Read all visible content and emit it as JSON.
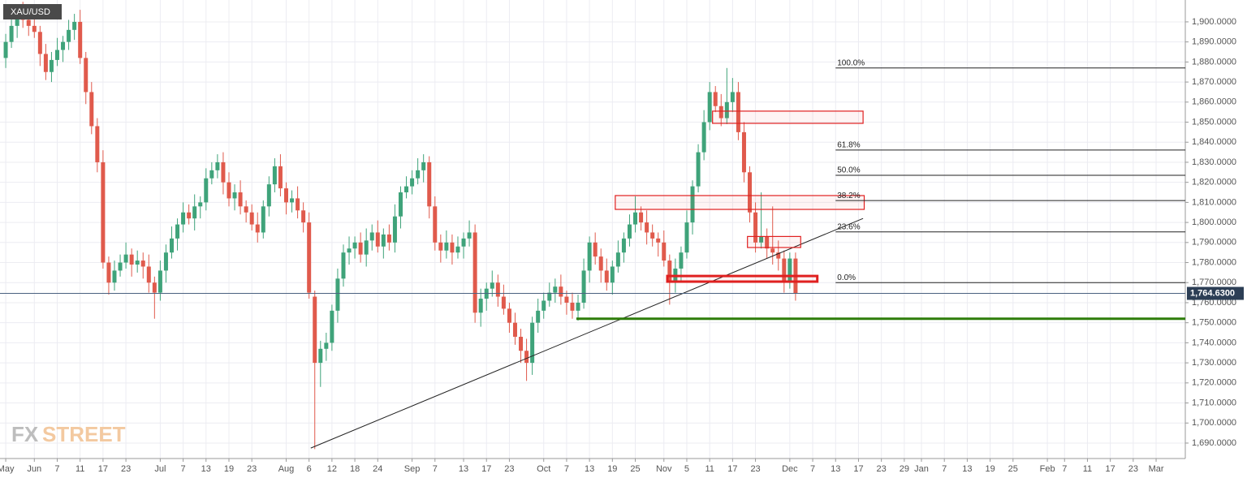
{
  "chart_data": {
    "type": "candlestick",
    "symbol": "XAU/USD",
    "watermark": [
      "FX",
      "STREET"
    ],
    "up_color": "#3fa37a",
    "down_color": "#e05a4c",
    "open": [
      1882,
      1890,
      1898,
      1905,
      1901,
      1898,
      1895,
      1884,
      1875,
      1881,
      1886,
      1890,
      1896,
      1900,
      1882,
      1865,
      1848,
      1830,
      1780,
      1770,
      1776,
      1780,
      1784,
      1779,
      1781,
      1778,
      1770,
      1765,
      1776,
      1785,
      1792,
      1799,
      1805,
      1802,
      1808,
      1810,
      1822,
      1826,
      1830,
      1820,
      1812,
      1815,
      1808,
      1805,
      1799,
      1795,
      1808,
      1819,
      1828,
      1817,
      1810,
      1812,
      1806,
      1800,
      1763,
      1730,
      1737,
      1740,
      1756,
      1772,
      1785,
      1787,
      1790,
      1784,
      1791,
      1795,
      1788,
      1794,
      1790,
      1803,
      1815,
      1818,
      1822,
      1826,
      1830,
      1808,
      1790,
      1786,
      1790,
      1785,
      1788,
      1792,
      1795,
      1755,
      1762,
      1767,
      1770,
      1763,
      1757,
      1750,
      1743,
      1736,
      1730,
      1750,
      1756,
      1761,
      1765,
      1768,
      1763,
      1760,
      1756,
      1760,
      1776,
      1790,
      1783,
      1776,
      1770,
      1778,
      1785,
      1792,
      1799,
      1805,
      1800,
      1795,
      1792,
      1790,
      1781,
      1770,
      1777,
      1785,
      1800,
      1818,
      1835,
      1850,
      1865,
      1858,
      1852,
      1860,
      1865,
      1845,
      1825,
      1805,
      1790,
      1793,
      1787,
      1785,
      1782,
      1770,
      1782
    ],
    "high": [
      1894,
      1904,
      1908,
      1910,
      1905,
      1904,
      1898,
      1889,
      1885,
      1892,
      1893,
      1901,
      1904,
      1906,
      1885,
      1870,
      1852,
      1836,
      1783,
      1781,
      1784,
      1790,
      1787,
      1786,
      1785,
      1784,
      1773,
      1781,
      1789,
      1798,
      1802,
      1810,
      1809,
      1814,
      1813,
      1827,
      1830,
      1834,
      1835,
      1825,
      1819,
      1821,
      1811,
      1809,
      1805,
      1811,
      1823,
      1832,
      1834,
      1820,
      1816,
      1818,
      1810,
      1805,
      1766,
      1741,
      1745,
      1759,
      1777,
      1789,
      1793,
      1793,
      1795,
      1797,
      1799,
      1801,
      1797,
      1799,
      1809,
      1818,
      1823,
      1826,
      1832,
      1834,
      1833,
      1813,
      1794,
      1796,
      1794,
      1793,
      1795,
      1801,
      1799,
      1767,
      1770,
      1776,
      1774,
      1769,
      1760,
      1755,
      1747,
      1742,
      1753,
      1762,
      1765,
      1770,
      1772,
      1774,
      1766,
      1765,
      1764,
      1782,
      1793,
      1795,
      1787,
      1782,
      1781,
      1791,
      1795,
      1804,
      1813,
      1808,
      1806,
      1799,
      1795,
      1796,
      1784,
      1782,
      1788,
      1806,
      1821,
      1839,
      1856,
      1870,
      1868,
      1864,
      1877,
      1872,
      1870,
      1850,
      1828,
      1810,
      1815,
      1797,
      1808,
      1791,
      1786,
      1785,
      1785
    ],
    "low": [
      1877,
      1887,
      1892,
      1897,
      1893,
      1892,
      1878,
      1871,
      1870,
      1878,
      1880,
      1886,
      1891,
      1879,
      1859,
      1844,
      1825,
      1777,
      1764,
      1766,
      1773,
      1777,
      1773,
      1775,
      1772,
      1765,
      1752,
      1761,
      1770,
      1782,
      1786,
      1795,
      1799,
      1796,
      1802,
      1806,
      1819,
      1822,
      1814,
      1808,
      1806,
      1804,
      1800,
      1796,
      1790,
      1792,
      1803,
      1815,
      1813,
      1804,
      1805,
      1802,
      1795,
      1762,
      1687,
      1718,
      1731,
      1736,
      1750,
      1768,
      1779,
      1782,
      1780,
      1778,
      1786,
      1785,
      1782,
      1786,
      1785,
      1797,
      1812,
      1814,
      1819,
      1820,
      1802,
      1786,
      1780,
      1782,
      1779,
      1782,
      1782,
      1788,
      1750,
      1748,
      1756,
      1763,
      1758,
      1754,
      1745,
      1739,
      1730,
      1721,
      1724,
      1745,
      1752,
      1758,
      1760,
      1759,
      1754,
      1752,
      1751,
      1757,
      1770,
      1779,
      1770,
      1766,
      1764,
      1775,
      1780,
      1788,
      1795,
      1796,
      1789,
      1788,
      1783,
      1778,
      1759,
      1765,
      1771,
      1782,
      1794,
      1815,
      1831,
      1846,
      1855,
      1848,
      1849,
      1855,
      1841,
      1820,
      1800,
      1785,
      1787,
      1782,
      1779,
      1776,
      1765,
      1767,
      1761
    ],
    "close": [
      1890,
      1898,
      1905,
      1901,
      1898,
      1895,
      1884,
      1875,
      1881,
      1886,
      1890,
      1896,
      1900,
      1882,
      1865,
      1848,
      1830,
      1780,
      1770,
      1776,
      1780,
      1784,
      1779,
      1781,
      1778,
      1770,
      1765,
      1776,
      1785,
      1792,
      1799,
      1805,
      1802,
      1808,
      1810,
      1822,
      1826,
      1830,
      1820,
      1812,
      1815,
      1808,
      1805,
      1799,
      1795,
      1808,
      1819,
      1828,
      1817,
      1810,
      1812,
      1806,
      1800,
      1765,
      1730,
      1737,
      1740,
      1756,
      1772,
      1785,
      1787,
      1790,
      1784,
      1791,
      1795,
      1788,
      1794,
      1790,
      1803,
      1815,
      1818,
      1822,
      1826,
      1830,
      1808,
      1790,
      1786,
      1790,
      1785,
      1788,
      1792,
      1795,
      1755,
      1762,
      1767,
      1770,
      1763,
      1757,
      1750,
      1743,
      1736,
      1730,
      1750,
      1756,
      1761,
      1765,
      1768,
      1763,
      1760,
      1756,
      1760,
      1776,
      1790,
      1783,
      1776,
      1770,
      1778,
      1785,
      1792,
      1799,
      1805,
      1800,
      1795,
      1792,
      1790,
      1781,
      1770,
      1777,
      1785,
      1800,
      1818,
      1835,
      1850,
      1865,
      1858,
      1852,
      1860,
      1865,
      1845,
      1825,
      1805,
      1790,
      1793,
      1787,
      1785,
      1782,
      1770,
      1782,
      1764.63
    ],
    "xlim": [
      -1,
      206.1
    ],
    "xticks": [
      {
        "value": 0,
        "label": "May"
      },
      {
        "value": 5,
        "label": "Jun"
      },
      {
        "value": 9,
        "label": "7"
      },
      {
        "value": 13,
        "label": "11"
      },
      {
        "value": 17,
        "label": "17"
      },
      {
        "value": 21,
        "label": "23"
      },
      {
        "value": 27,
        "label": "Jul"
      },
      {
        "value": 31,
        "label": "7"
      },
      {
        "value": 35,
        "label": "13"
      },
      {
        "value": 39,
        "label": "19"
      },
      {
        "value": 43,
        "label": "23"
      },
      {
        "value": 49,
        "label": "Aug"
      },
      {
        "value": 53,
        "label": "6"
      },
      {
        "value": 57,
        "label": "12"
      },
      {
        "value": 61,
        "label": "18"
      },
      {
        "value": 65,
        "label": "24"
      },
      {
        "value": 71,
        "label": "Sep"
      },
      {
        "value": 75,
        "label": "7"
      },
      {
        "value": 80,
        "label": "13"
      },
      {
        "value": 84,
        "label": "17"
      },
      {
        "value": 88,
        "label": "23"
      },
      {
        "value": 94,
        "label": "Oct"
      },
      {
        "value": 98,
        "label": "7"
      },
      {
        "value": 102,
        "label": "13"
      },
      {
        "value": 106,
        "label": "19"
      },
      {
        "value": 110,
        "label": "25"
      },
      {
        "value": 115,
        "label": "Nov"
      },
      {
        "value": 119,
        "label": "5"
      },
      {
        "value": 123,
        "label": "11"
      },
      {
        "value": 127,
        "label": "17"
      },
      {
        "value": 131,
        "label": "23"
      },
      {
        "value": 137,
        "label": "Dec"
      },
      {
        "value": 141,
        "label": "7"
      },
      {
        "value": 145,
        "label": "13"
      },
      {
        "value": 149,
        "label": "17"
      },
      {
        "value": 153,
        "label": "23"
      },
      {
        "value": 157,
        "label": "29"
      },
      {
        "value": 160,
        "label": "Jan"
      },
      {
        "value": 164,
        "label": "7"
      },
      {
        "value": 168,
        "label": "13"
      },
      {
        "value": 172,
        "label": "19"
      },
      {
        "value": 176,
        "label": "25"
      },
      {
        "value": 182,
        "label": "Feb"
      },
      {
        "value": 185,
        "label": "7"
      },
      {
        "value": 189,
        "label": "11"
      },
      {
        "value": 193,
        "label": "17"
      },
      {
        "value": 197,
        "label": "23"
      },
      {
        "value": 201,
        "label": "Mar"
      }
    ],
    "ylim": [
      1682.3,
      1910.9
    ],
    "yticks": [
      {
        "value": 1690,
        "label": "1,690.0000"
      },
      {
        "value": 1700,
        "label": "1,700.0000"
      },
      {
        "value": 1710,
        "label": "1,710.0000"
      },
      {
        "value": 1720,
        "label": "1,720.0000"
      },
      {
        "value": 1730,
        "label": "1,730.0000"
      },
      {
        "value": 1740,
        "label": "1,740.0000"
      },
      {
        "value": 1750,
        "label": "1,750.0000"
      },
      {
        "value": 1760,
        "label": "1,760.0000"
      },
      {
        "value": 1770,
        "label": "1,770.0000"
      },
      {
        "value": 1780,
        "label": "1,780.0000"
      },
      {
        "value": 1790,
        "label": "1,790.0000"
      },
      {
        "value": 1800,
        "label": "1,800.0000"
      },
      {
        "value": 1810,
        "label": "1,810.0000"
      },
      {
        "value": 1820,
        "label": "1,820.0000"
      },
      {
        "value": 1830,
        "label": "1,830.0000"
      },
      {
        "value": 1840,
        "label": "1,840.0000"
      },
      {
        "value": 1850,
        "label": "1,850.0000"
      },
      {
        "value": 1860,
        "label": "1,860.0000"
      },
      {
        "value": 1870,
        "label": "1,870.0000"
      },
      {
        "value": 1880,
        "label": "1,880.0000"
      },
      {
        "value": 1890,
        "label": "1,890.0000"
      },
      {
        "value": 1900,
        "label": "1,900.0000"
      }
    ],
    "grid": true,
    "current_price": {
      "value": 1764.63,
      "label": "1,764.6300"
    },
    "fib_start": 145,
    "fib_levels": [
      {
        "value": 1877,
        "label": "100.0%"
      },
      {
        "value": 1836.1,
        "label": "61.8%"
      },
      {
        "value": 1823.5,
        "label": "50.0%"
      },
      {
        "value": 1810.9,
        "label": "38.2%"
      },
      {
        "value": 1795.3,
        "label": "23.6%"
      },
      {
        "value": 1770,
        "label": "0.0%"
      }
    ],
    "trendline": {
      "x": [
        53.3,
        149.8
      ],
      "y": [
        1687.5,
        1802
      ]
    },
    "support_line": {
      "value": 1752,
      "start": 99.7,
      "color": "#2e7d0a"
    },
    "boxes": [
      {
        "x": [
          123.5,
          149.8
        ],
        "y": [
          1849.4,
          1855.5
        ]
      },
      {
        "x": [
          106.5,
          150
        ],
        "y": [
          1806.5,
          1813.4
        ]
      },
      {
        "x": [
          129.6,
          138.9
        ],
        "y": [
          1787.5,
          1793
        ]
      },
      {
        "x": [
          115.6,
          141.8
        ],
        "y": [
          1770.5,
          1773.3
        ]
      }
    ]
  }
}
